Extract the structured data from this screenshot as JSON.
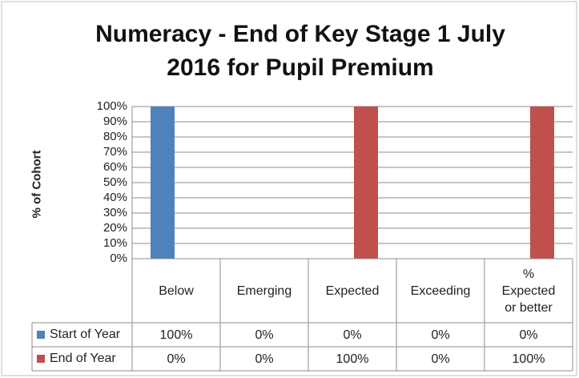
{
  "chart_data": {
    "type": "bar",
    "title": "Numeracy - End of Key Stage 1 July 2016 for Pupil Premium",
    "y_label": "% of Cohort",
    "categories": [
      "Below",
      "Emerging",
      "Expected",
      "Exceeding",
      "% Expected or better"
    ],
    "series": [
      {
        "name": "Start of Year",
        "color": "#4f81bd",
        "values": [
          100,
          0,
          0,
          0,
          0
        ],
        "value_labels": [
          "100%",
          "0%",
          "0%",
          "0%",
          "0%"
        ]
      },
      {
        "name": "End of Year",
        "color": "#c0504d",
        "values": [
          0,
          0,
          100,
          0,
          100
        ],
        "value_labels": [
          "0%",
          "0%",
          "100%",
          "0%",
          "100%"
        ]
      }
    ],
    "ylim": [
      0,
      100
    ],
    "yticks": [
      {
        "value": 0,
        "label": "0%"
      },
      {
        "value": 10,
        "label": "10%"
      },
      {
        "value": 20,
        "label": "20%"
      },
      {
        "value": 30,
        "label": "30%"
      },
      {
        "value": 40,
        "label": "40%"
      },
      {
        "value": 50,
        "label": "50%"
      },
      {
        "value": 60,
        "label": "60%"
      },
      {
        "value": 70,
        "label": "70%"
      },
      {
        "value": 80,
        "label": "80%"
      },
      {
        "value": 90,
        "label": "90%"
      },
      {
        "value": 100,
        "label": "100%"
      }
    ],
    "grid": true,
    "data_table": true
  }
}
